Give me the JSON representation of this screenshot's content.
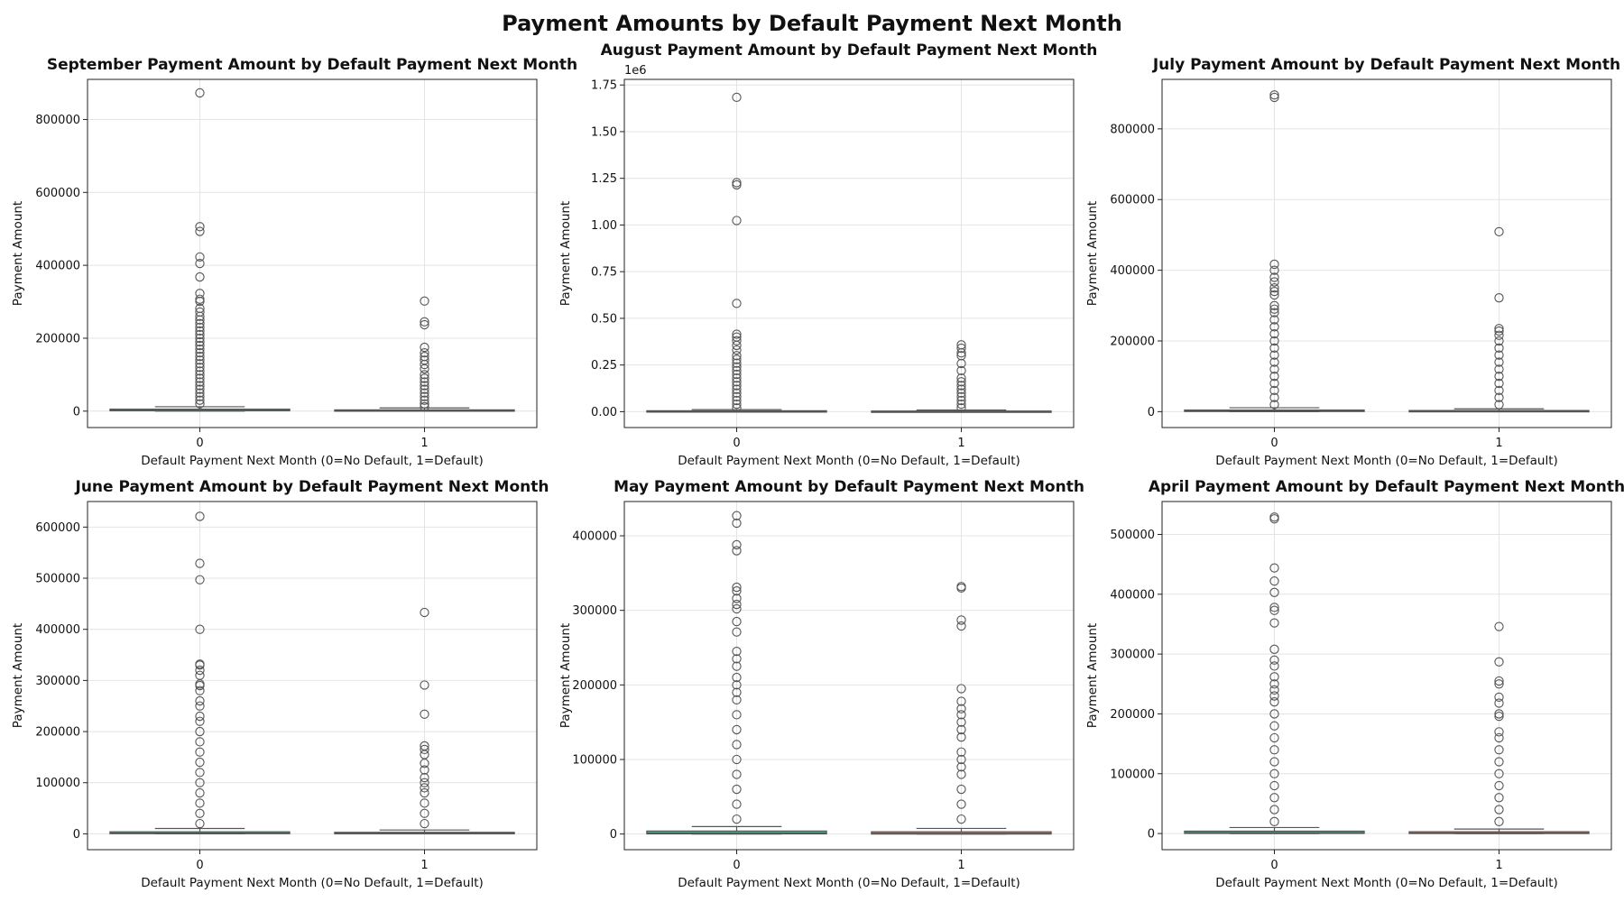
{
  "figure_title": "Payment Amounts by Default Payment Next Month",
  "chart_data": [
    {
      "type": "box",
      "title": "September Payment Amount by Default Payment Next Month",
      "xlabel": "Default Payment Next Month (0=No Default, 1=Default)",
      "ylabel": "Payment Amount",
      "categories": [
        "0",
        "1"
      ],
      "ylim": [
        -45000,
        910000
      ],
      "yticks": [
        0,
        200000,
        400000,
        600000,
        800000
      ],
      "ytick_labels": [
        "0",
        "200000",
        "400000",
        "600000",
        "800000"
      ],
      "offset_label": "",
      "colors": [
        "#66c2a5",
        "#fc8d62"
      ],
      "boxes": [
        {
          "q1": 1000,
          "median": 2500,
          "q3": 5500,
          "whisker_low": 0,
          "whisker_high": 12000,
          "outliers": [
            873000,
            506000,
            493000,
            423000,
            405000,
            368000,
            323000,
            307000,
            301000,
            282000,
            272000,
            260000,
            250000,
            240000,
            230000,
            220000,
            210000,
            200000,
            190000,
            180000,
            170000,
            160000,
            150000,
            140000,
            130000,
            120000,
            110000,
            100000,
            90000,
            80000,
            70000,
            60000,
            50000,
            40000,
            30000,
            20000
          ]
        },
        {
          "q1": 0,
          "median": 1500,
          "q3": 3500,
          "whisker_low": 0,
          "whisker_high": 8800,
          "outliers": [
            302000,
            245000,
            237000,
            175000,
            160000,
            150000,
            140000,
            128000,
            116000,
            100000,
            90000,
            80000,
            70000,
            60000,
            50000,
            40000,
            30000,
            20000,
            12000
          ]
        }
      ]
    },
    {
      "type": "box",
      "title": "August Payment Amount by Default Payment Next Month",
      "xlabel": "Default Payment Next Month (0=No Default, 1=Default)",
      "ylabel": "Payment Amount",
      "categories": [
        "0",
        "1"
      ],
      "ylim": [
        -85000,
        1780000
      ],
      "yticks": [
        0,
        250000,
        500000,
        750000,
        1000000,
        1250000,
        1500000,
        1750000
      ],
      "ytick_labels": [
        "0.00",
        "0.25",
        "0.50",
        "0.75",
        "1.00",
        "1.25",
        "1.50",
        "1.75"
      ],
      "offset_label": "1e6",
      "colors": [
        "#66c2a5",
        "#fc8d62"
      ],
      "boxes": [
        {
          "q1": 800,
          "median": 2000,
          "q3": 5000,
          "whisker_low": 0,
          "whisker_high": 11300,
          "outliers": [
            1684000,
            1227000,
            1215000,
            1024000,
            580000,
            415000,
            400000,
            380000,
            355000,
            330000,
            300000,
            280000,
            260000,
            240000,
            220000,
            200000,
            180000,
            160000,
            140000,
            120000,
            100000,
            80000,
            60000,
            40000,
            20000
          ]
        },
        {
          "q1": 0,
          "median": 1500,
          "q3": 3500,
          "whisker_low": 0,
          "whisker_high": 8500,
          "outliers": [
            358000,
            340000,
            315000,
            300000,
            258000,
            220000,
            180000,
            160000,
            140000,
            120000,
            100000,
            80000,
            60000,
            40000,
            20000
          ]
        }
      ]
    },
    {
      "type": "box",
      "title": "July Payment Amount by Default Payment Next Month",
      "xlabel": "Default Payment Next Month (0=No Default, 1=Default)",
      "ylabel": "Payment Amount",
      "categories": [
        "0",
        "1"
      ],
      "ylim": [
        -45000,
        940000
      ],
      "yticks": [
        0,
        200000,
        400000,
        600000,
        800000
      ],
      "ytick_labels": [
        "0",
        "200000",
        "400000",
        "600000",
        "800000"
      ],
      "offset_label": "",
      "colors": [
        "#66c2a5",
        "#fc8d62"
      ],
      "boxes": [
        {
          "q1": 400,
          "median": 1800,
          "q3": 4500,
          "whisker_low": 0,
          "whisker_high": 11000,
          "outliers": [
            896000,
            889000,
            417000,
            400000,
            380000,
            367000,
            350000,
            340000,
            330000,
            300000,
            290000,
            280000,
            260000,
            240000,
            220000,
            200000,
            180000,
            160000,
            140000,
            120000,
            100000,
            80000,
            60000,
            40000,
            20000
          ]
        },
        {
          "q1": 0,
          "median": 1200,
          "q3": 3200,
          "whisker_low": 0,
          "whisker_high": 8000,
          "outliers": [
            509000,
            322000,
            235000,
            228000,
            216000,
            200000,
            180000,
            160000,
            140000,
            120000,
            100000,
            80000,
            60000,
            40000,
            20000
          ]
        }
      ]
    },
    {
      "type": "box",
      "title": "June Payment Amount by Default Payment Next Month",
      "xlabel": "Default Payment Next Month (0=No Default, 1=Default)",
      "ylabel": "Payment Amount",
      "categories": [
        "0",
        "1"
      ],
      "ylim": [
        -31000,
        650000
      ],
      "yticks": [
        0,
        100000,
        200000,
        300000,
        400000,
        500000,
        600000
      ],
      "ytick_labels": [
        "0",
        "100000",
        "200000",
        "300000",
        "400000",
        "500000",
        "600000"
      ],
      "offset_label": "",
      "colors": [
        "#66c2a5",
        "#fc8d62"
      ],
      "boxes": [
        {
          "q1": 300,
          "median": 1500,
          "q3": 4000,
          "whisker_low": 0,
          "whisker_high": 10500,
          "outliers": [
            621000,
            529000,
            497000,
            400000,
            332000,
            330000,
            320000,
            310000,
            293000,
            290000,
            280000,
            260000,
            250000,
            230000,
            220000,
            200000,
            180000,
            160000,
            140000,
            120000,
            100000,
            80000,
            60000,
            40000,
            20000
          ]
        },
        {
          "q1": 0,
          "median": 1000,
          "q3": 3000,
          "whisker_low": 0,
          "whisker_high": 7500,
          "outliers": [
            433000,
            291000,
            234000,
            172000,
            165000,
            155000,
            138000,
            125000,
            110000,
            100000,
            90000,
            80000,
            60000,
            40000,
            20000
          ]
        }
      ]
    },
    {
      "type": "box",
      "title": "May Payment Amount by Default Payment Next Month",
      "xlabel": "Default Payment Next Month (0=No Default, 1=Default)",
      "ylabel": "Payment Amount",
      "categories": [
        "0",
        "1"
      ],
      "ylim": [
        -21000,
        446000
      ],
      "yticks": [
        0,
        100000,
        200000,
        300000,
        400000
      ],
      "ytick_labels": [
        "0",
        "100000",
        "200000",
        "300000",
        "400000"
      ],
      "offset_label": "",
      "colors": [
        "#66c2a5",
        "#fc8d62"
      ],
      "boxes": [
        {
          "q1": 200,
          "median": 1500,
          "q3": 4000,
          "whisker_low": 0,
          "whisker_high": 10000,
          "outliers": [
            427000,
            417000,
            388000,
            380000,
            331000,
            326000,
            316000,
            308000,
            302000,
            285000,
            271000,
            245000,
            235000,
            225000,
            210000,
            200000,
            190000,
            180000,
            160000,
            140000,
            120000,
            100000,
            80000,
            60000,
            40000,
            20000
          ]
        },
        {
          "q1": 0,
          "median": 1000,
          "q3": 3000,
          "whisker_low": 0,
          "whisker_high": 7500,
          "outliers": [
            332000,
            330000,
            287000,
            279000,
            195000,
            178000,
            168000,
            160000,
            150000,
            140000,
            130000,
            110000,
            100000,
            90000,
            80000,
            60000,
            40000,
            20000
          ]
        }
      ]
    },
    {
      "type": "box",
      "title": "April Payment Amount by Default Payment Next Month",
      "xlabel": "Default Payment Next Month (0=No Default, 1=Default)",
      "ylabel": "Payment Amount",
      "categories": [
        "0",
        "1"
      ],
      "ylim": [
        -27000,
        555000
      ],
      "yticks": [
        0,
        100000,
        200000,
        300000,
        400000,
        500000
      ],
      "ytick_labels": [
        "0",
        "100000",
        "200000",
        "300000",
        "400000",
        "500000"
      ],
      "offset_label": "",
      "colors": [
        "#66c2a5",
        "#fc8d62"
      ],
      "boxes": [
        {
          "q1": 200,
          "median": 1500,
          "q3": 4000,
          "whisker_low": 0,
          "whisker_high": 10000,
          "outliers": [
            529000,
            526000,
            444000,
            422000,
            403000,
            378000,
            373000,
            352000,
            308000,
            290000,
            280000,
            262000,
            250000,
            240000,
            230000,
            220000,
            200000,
            180000,
            160000,
            140000,
            120000,
            100000,
            80000,
            60000,
            40000,
            20000
          ]
        },
        {
          "q1": 0,
          "median": 1000,
          "q3": 3000,
          "whisker_low": 0,
          "whisker_high": 7500,
          "outliers": [
            346000,
            287000,
            255000,
            250000,
            228000,
            218000,
            200000,
            196000,
            170000,
            160000,
            140000,
            120000,
            100000,
            80000,
            60000,
            40000,
            20000
          ]
        }
      ]
    }
  ]
}
